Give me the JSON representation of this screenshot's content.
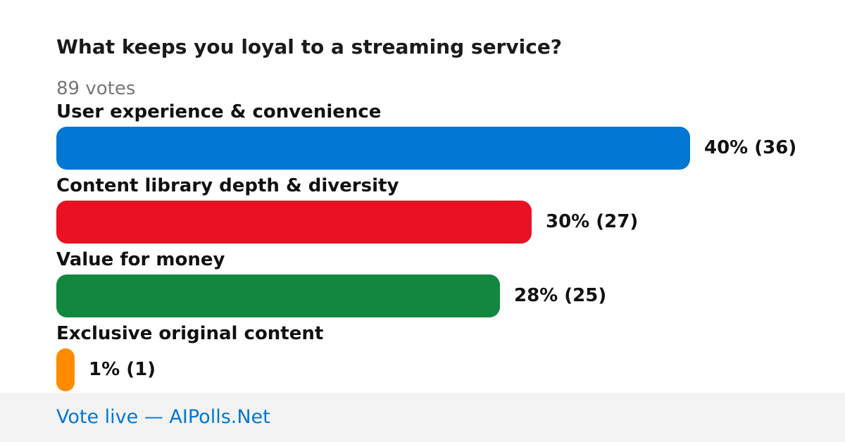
{
  "poll": {
    "question": "What keeps you loyal to a streaming service?",
    "votes_text": "89 votes"
  },
  "chart_data": {
    "type": "bar",
    "orientation": "horizontal",
    "title": "What keeps you loyal to a streaming service?",
    "total_votes": 89,
    "categories": [
      "User experience & convenience",
      "Content library depth & diversity",
      "Value for money",
      "Exclusive original content"
    ],
    "values": [
      40,
      30,
      28,
      1
    ],
    "counts": [
      36,
      27,
      25,
      1
    ],
    "value_labels": [
      "40% (36)",
      "30% (27)",
      "28% (25)",
      "1% (1)"
    ],
    "colors": [
      "#0377d4",
      "#e81224",
      "#11873f",
      "#ff8c00"
    ],
    "xlim": [
      0,
      100
    ]
  },
  "footer": {
    "link_text": "Vote live — AIPolls.Net"
  }
}
